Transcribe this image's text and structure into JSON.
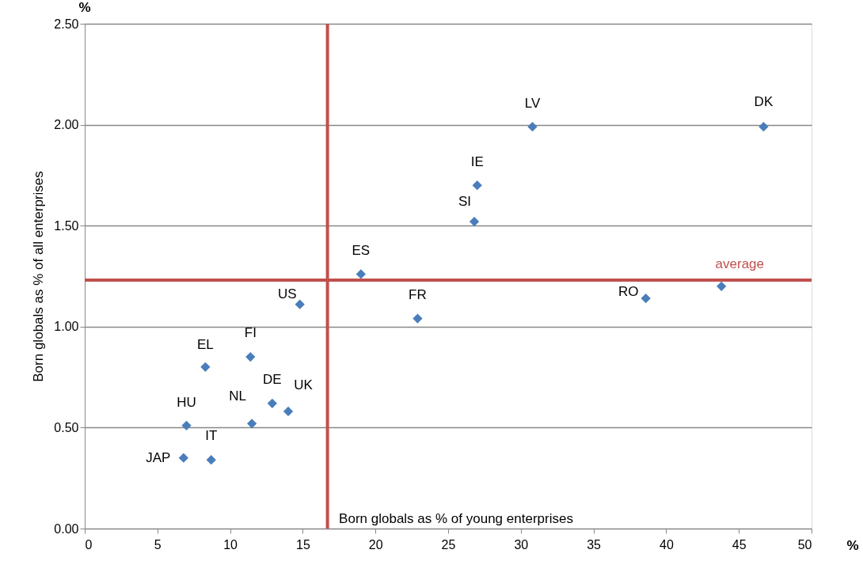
{
  "chart_data": {
    "type": "scatter",
    "xlabel": "Born globals as % of young enterprises",
    "ylabel": "Born globals as % of all enterprises",
    "x": [
      30.8,
      46.7,
      27.0,
      26.8,
      19.0,
      14.8,
      22.9,
      38.6,
      43.8,
      8.3,
      11.4,
      12.9,
      14.0,
      11.5,
      7.0,
      6.8,
      8.7
    ],
    "series": [
      {
        "color": "#4a7ebb",
        "values": [
          1.99,
          1.99,
          1.7,
          1.52,
          1.26,
          1.11,
          1.04,
          1.14,
          1.2,
          0.8,
          0.85,
          0.62,
          0.58,
          0.52,
          0.51,
          0.35,
          0.34
        ]
      }
    ],
    "xlim": [
      0,
      50
    ],
    "xticks": [
      0,
      5,
      10,
      15,
      20,
      25,
      30,
      35,
      40,
      45,
      50
    ],
    "ylim": [
      0,
      2.5
    ],
    "yticks": [
      {
        "value": 0,
        "label": "0.00"
      },
      {
        "value": 0.5,
        "label": "0.50"
      },
      {
        "value": 1,
        "label": "1.00"
      },
      {
        "value": 1.5,
        "label": "1.50"
      },
      {
        "value": 2,
        "label": "2.00"
      },
      {
        "value": 2.5,
        "label": "2.50"
      }
    ],
    "grid": "y",
    "marker": "diamond",
    "ref_lines": [
      {
        "axis": "y",
        "value": 1.23,
        "label": "average",
        "color": "#c0504d"
      },
      {
        "axis": "x",
        "value": 16.7,
        "color": "#c0504d"
      }
    ],
    "annotations": [
      "%",
      "%",
      {
        "text": "LV",
        "x": 30.8,
        "y": 1.99
      },
      {
        "text": "DK",
        "x": 46.7,
        "y": 1.99
      },
      {
        "text": "IE",
        "x": 27.0,
        "y": 1.7
      },
      {
        "text": "SI",
        "x": 26.8,
        "y": 1.52
      },
      {
        "text": "ES",
        "x": 19.0,
        "y": 1.26
      },
      {
        "text": "US",
        "x": 14.8,
        "y": 1.11
      },
      {
        "text": "FR",
        "x": 22.9,
        "y": 1.04
      },
      {
        "text": "RO",
        "x": 38.6,
        "y": 1.14
      },
      {
        "text": "EL",
        "x": 8.3,
        "y": 0.8
      },
      {
        "text": "FI",
        "x": 11.4,
        "y": 0.85
      },
      {
        "text": "DE",
        "x": 12.9,
        "y": 0.62
      },
      {
        "text": "UK",
        "x": 14.0,
        "y": 0.58
      },
      {
        "text": "NL",
        "x": 11.5,
        "y": 0.52
      },
      {
        "text": "HU",
        "x": 7.0,
        "y": 0.51
      },
      {
        "text": "JAP",
        "x": 6.8,
        "y": 0.35
      },
      {
        "text": "IT",
        "x": 8.7,
        "y": 0.34
      }
    ]
  }
}
